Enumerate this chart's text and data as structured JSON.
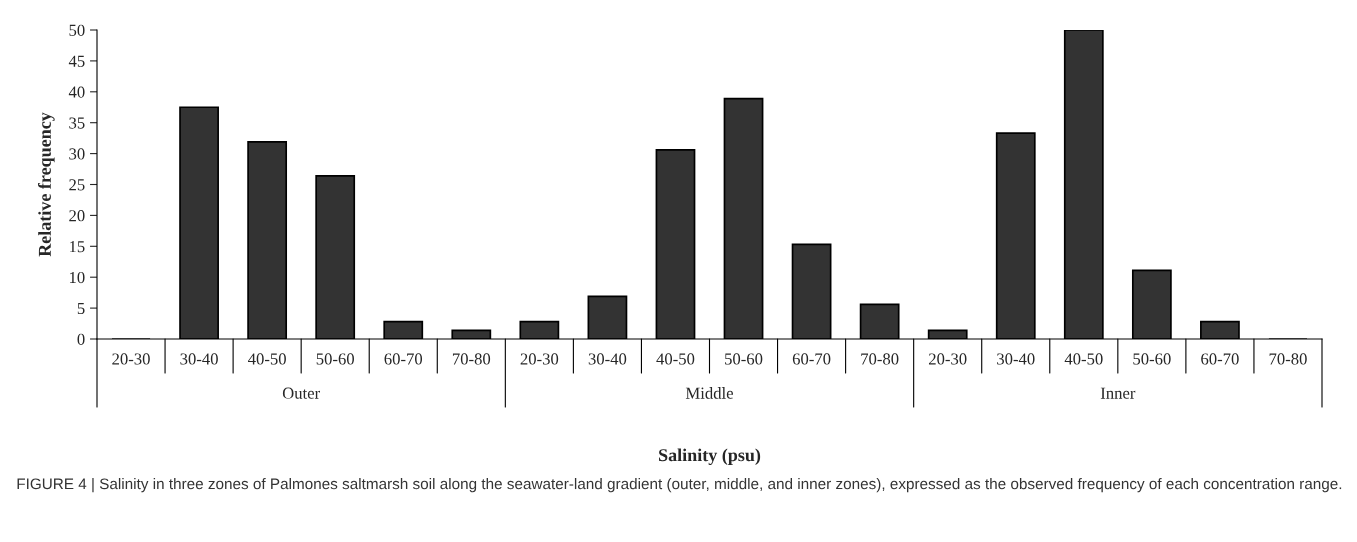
{
  "chart_data": {
    "type": "bar",
    "xlabel": "Salinity (psu)",
    "ylabel": "Relative frequency",
    "categories": [
      "20-30",
      "30-40",
      "40-50",
      "50-60",
      "60-70",
      "70-80",
      "20-30",
      "30-40",
      "40-50",
      "50-60",
      "60-70",
      "70-80",
      "20-30",
      "30-40",
      "40-50",
      "50-60",
      "60-70",
      "70-80"
    ],
    "values": [
      0,
      37.5,
      31.9,
      26.4,
      2.8,
      1.4,
      2.8,
      6.9,
      30.6,
      38.9,
      15.3,
      5.6,
      1.4,
      33.3,
      50,
      11.1,
      2.8,
      0
    ],
    "color": "#333333",
    "ylim": [
      0,
      50
    ],
    "yticks": [
      0,
      5,
      10,
      15,
      20,
      25,
      30,
      35,
      40,
      45,
      50
    ],
    "grid": false,
    "annotations": [
      "Outer",
      "Middle",
      "Inner",
      "FIGURE 4 | Salinity in three zones of Palmones saltmarsh soil along the seawater-land gradient (outer, middle, and inner zones), expressed as the observed frequency of each concentration range."
    ]
  }
}
